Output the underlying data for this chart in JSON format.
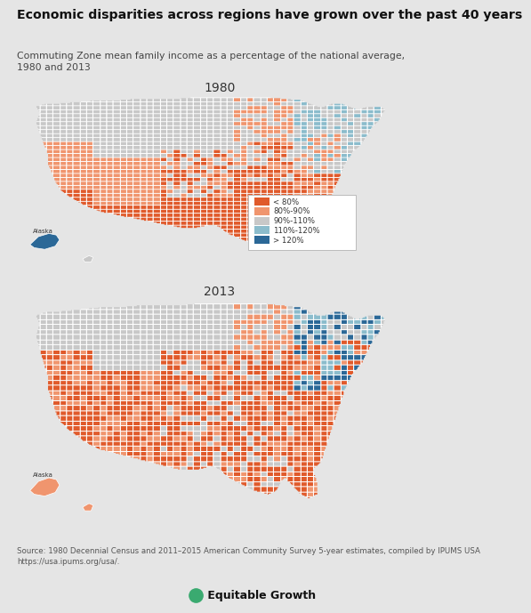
{
  "title": "Economic disparities across regions have grown over the past 40 years",
  "subtitle": "Commuting Zone mean family income as a percentage of the national average,\n1980 and 2013",
  "year1": "1980",
  "year2": "2013",
  "source": "Source: 1980 Decennial Census and 2011–2015 American Community Survey 5-year estimates, compiled by IPUMS USA\nhttps://usa.ipums.org/usa/.",
  "logo_text": "Equitable Growth",
  "legend_labels": [
    "< 80%",
    "80%-90%",
    "90%-110%",
    "110%-120%",
    "> 120%"
  ],
  "legend_colors": [
    "#e05a2b",
    "#f0956e",
    "#c8c8c8",
    "#8bbccc",
    "#2b6897"
  ],
  "bg_color": "#e5e5e5",
  "title_fontsize": 10.2,
  "subtitle_fontsize": 7.8,
  "source_fontsize": 6.2,
  "year_fontsize": 10
}
